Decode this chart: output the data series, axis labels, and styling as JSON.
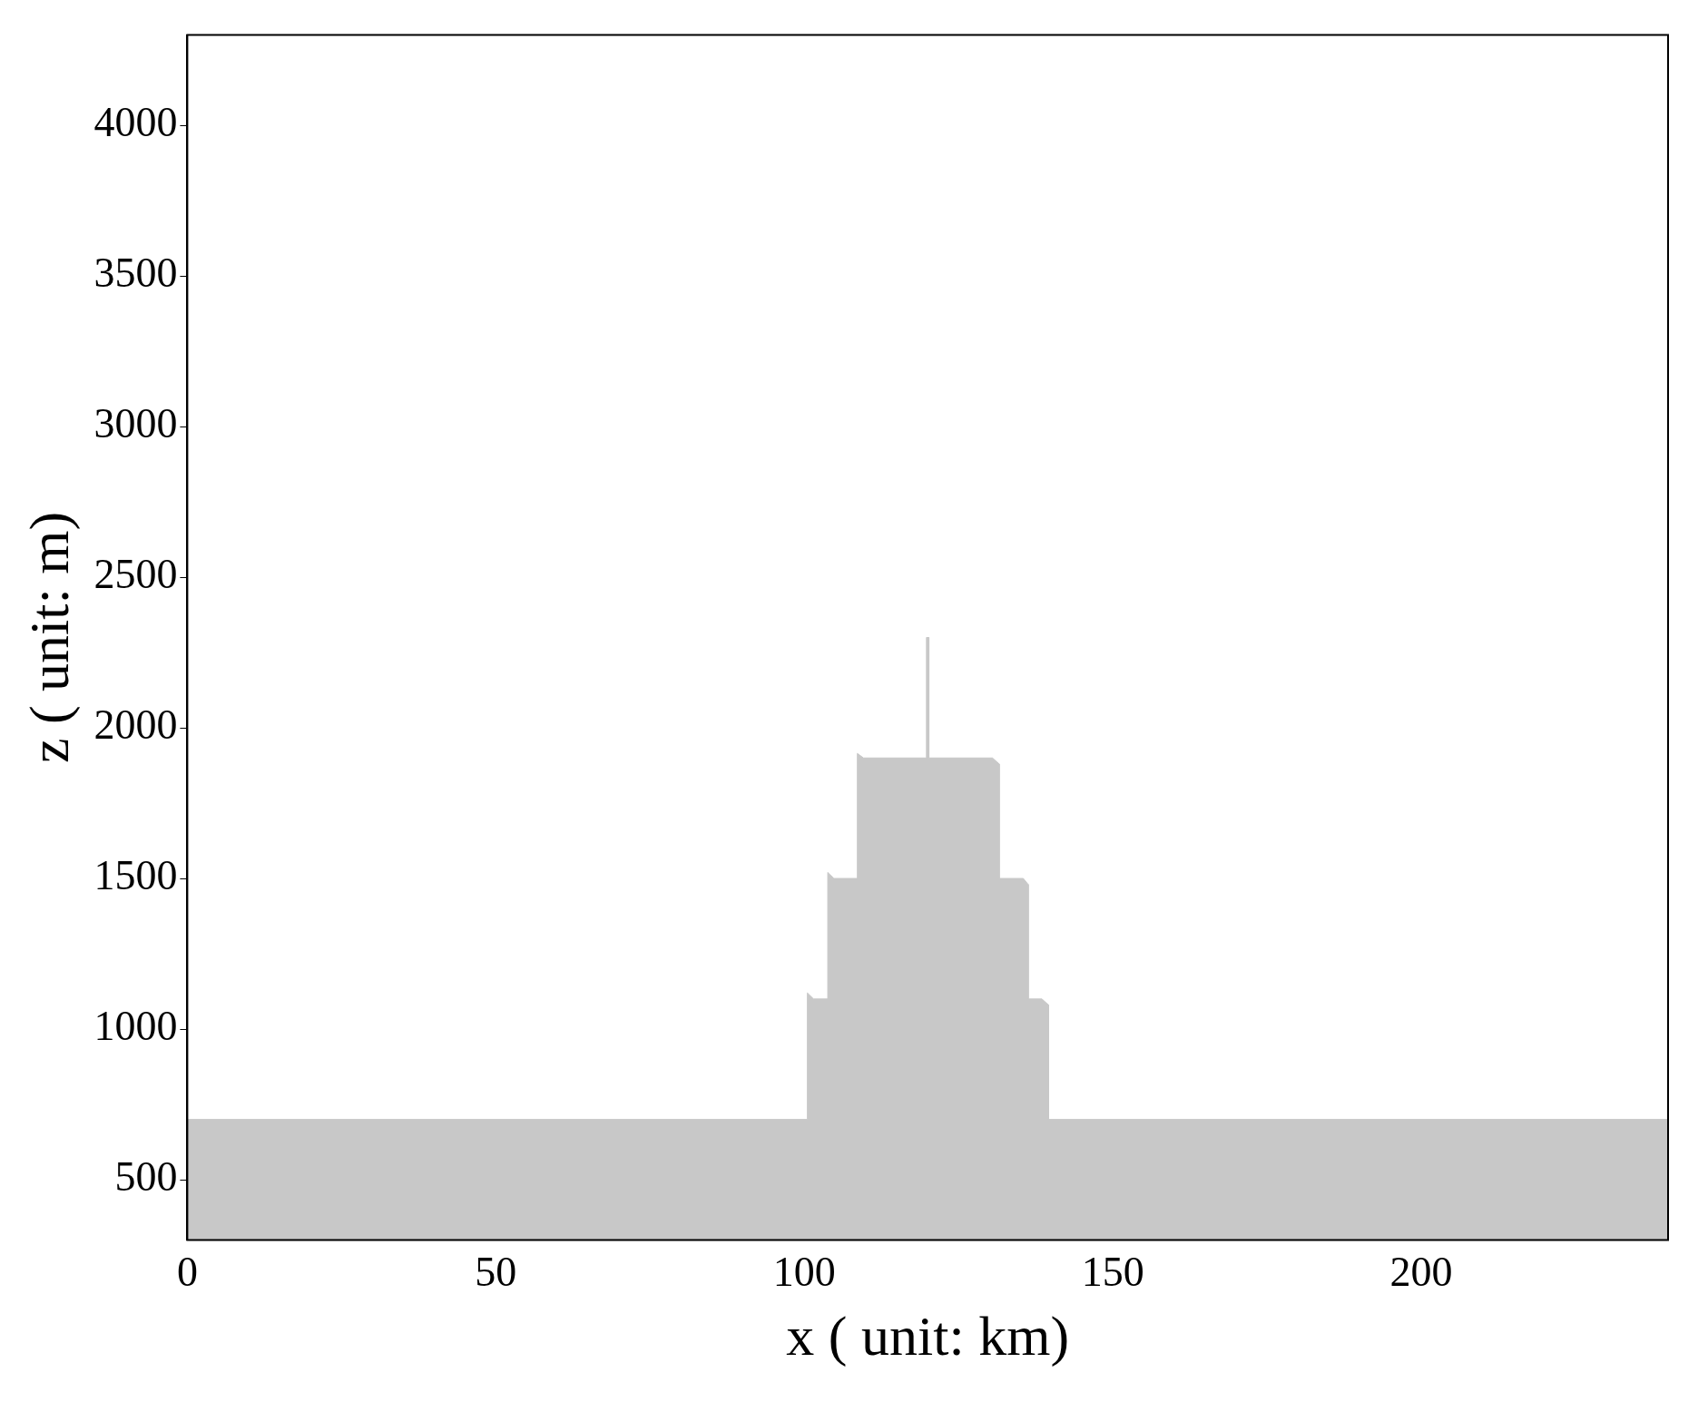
{
  "chart_data": {
    "type": "area",
    "xlabel": "x ( unit: km)",
    "ylabel": "z ( unit: m)",
    "x": [
      0,
      100.5,
      100.5,
      101.5,
      103.8,
      103.8,
      104.8,
      108.6,
      108.6,
      109.6,
      119.8,
      119.8,
      120.2,
      120.2,
      130.5,
      131.6,
      131.6,
      135.5,
      136.3,
      136.3,
      138.5,
      139.6,
      139.6,
      240
    ],
    "values": [
      700,
      700,
      1120,
      1100,
      1100,
      1520,
      1500,
      1500,
      1915,
      1900,
      1900,
      2300,
      2300,
      1900,
      1900,
      1880,
      1500,
      1500,
      1480,
      1100,
      1100,
      1080,
      700,
      700
    ],
    "color": "#c8c8c8",
    "xlim": [
      0,
      240
    ],
    "ylim": [
      300,
      4300
    ],
    "xticks": [
      0,
      50,
      100,
      150,
      200
    ],
    "yticks": [
      500,
      1000,
      1500,
      2000,
      2500,
      3000,
      3500,
      4000
    ],
    "grid": false,
    "legend": false
  }
}
